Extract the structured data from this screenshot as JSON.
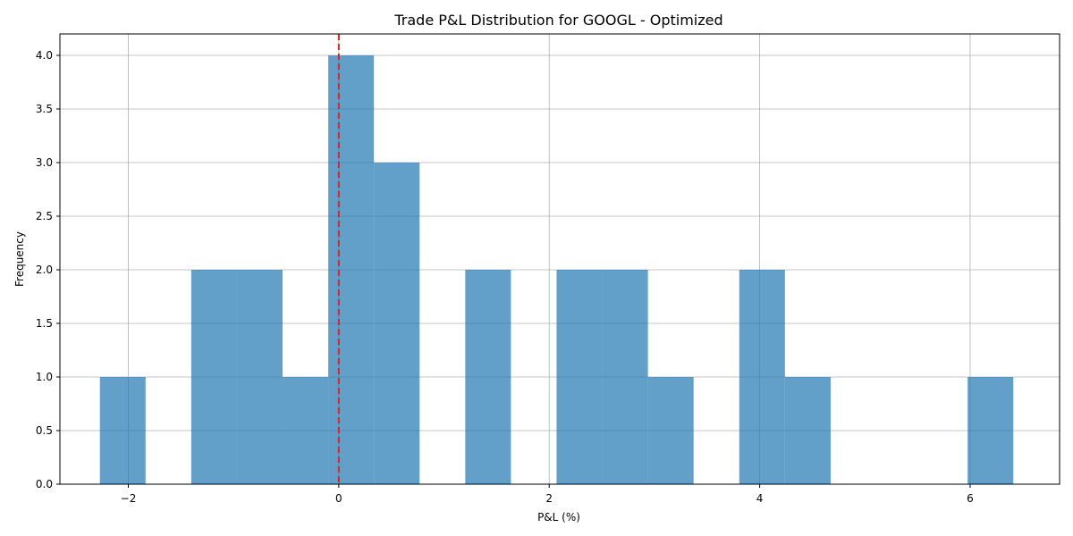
{
  "chart_data": {
    "type": "bar",
    "title": "Trade P&L Distribution for GOOGL - Optimized",
    "xlabel": "P&L (%)",
    "ylabel": "Frequency",
    "xlim": [
      -2.65,
      6.85
    ],
    "ylim": [
      0,
      4.2
    ],
    "x_ticks": [
      -2,
      0,
      2,
      4,
      6
    ],
    "x_tick_labels": [
      "−2",
      "0",
      "2",
      "4",
      "6"
    ],
    "y_ticks": [
      0,
      0.5,
      1,
      1.5,
      2,
      2.5,
      3,
      3.5,
      4
    ],
    "y_tick_labels": [
      "0.0",
      "0.5",
      "1.0",
      "1.5",
      "2.0",
      "2.5",
      "3.0",
      "3.5",
      "4.0"
    ],
    "grid": true,
    "bar_color": "#1f77b4",
    "bar_opacity": 0.7,
    "bin_edges": [
      -2.27,
      -1.836,
      -1.402,
      -0.968,
      -0.534,
      -0.1,
      0.334,
      0.768,
      1.202,
      1.636,
      2.07,
      2.504,
      2.938,
      3.372,
      3.806,
      4.24,
      4.674,
      5.108,
      5.542,
      5.976,
      6.41
    ],
    "counts": [
      1,
      0,
      2,
      2,
      1,
      4,
      3,
      0,
      2,
      0,
      2,
      2,
      1,
      0,
      2,
      1,
      0,
      0,
      0,
      1
    ],
    "reference_line": {
      "x": 0,
      "color": "#d62728",
      "style": "dashed"
    }
  }
}
